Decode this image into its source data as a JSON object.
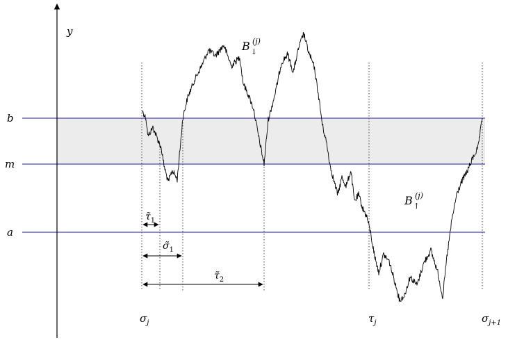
{
  "axis": {
    "y_label": "y"
  },
  "levels": {
    "b": "b",
    "m": "m",
    "a": "a"
  },
  "curve_labels": {
    "down": {
      "base": "B",
      "arrow": "↓",
      "index": "(j)"
    },
    "up": {
      "base": "B",
      "arrow": "↑",
      "index": "(j)"
    }
  },
  "time_marks": {
    "sigma_j": {
      "base": "σ",
      "sub": "j"
    },
    "tau_j": {
      "base": "τ",
      "sub": "j"
    },
    "sigma_j1": {
      "base": "σ",
      "sub": "j+1"
    }
  },
  "intervals": {
    "tau1": {
      "base": "τ̃",
      "sub": "1"
    },
    "sigma1": {
      "base": "σ̃",
      "sub": "1"
    },
    "tau2": {
      "base": "τ̃",
      "sub": "2"
    }
  },
  "colors": {
    "level_line": "#1a1aa6",
    "band_fill": "#ececec",
    "path": "#000000",
    "dotted": "#555555"
  }
}
